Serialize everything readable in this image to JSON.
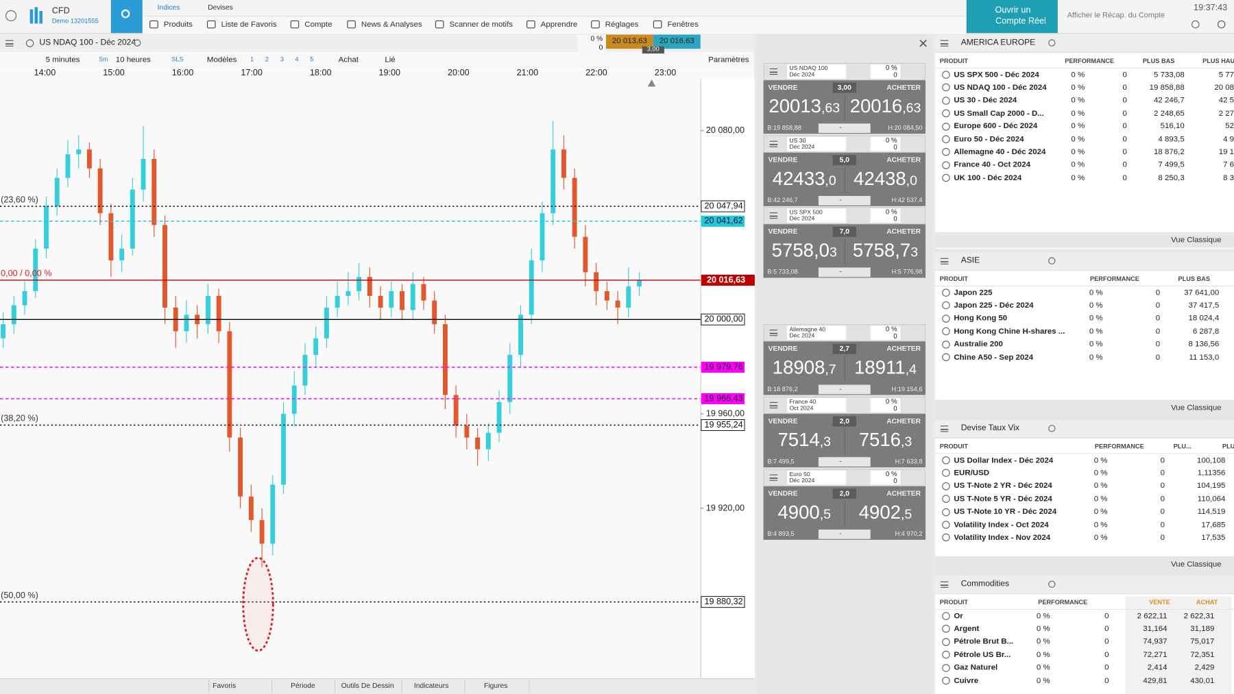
{
  "top_bar": {
    "brand": "CFD",
    "account": "Demo 13201555",
    "tabs": [
      "Indices",
      "Devises"
    ],
    "menu": [
      "Produits",
      "Liste de Favoris",
      "Compte",
      "News & Analyses",
      "Scanner de motifs",
      "Apprendre",
      "Réglages",
      "Fenêtres"
    ],
    "cta": [
      "Ouvrir un",
      "Compte Réel"
    ],
    "recap": "Afficher le Récap. du Compte",
    "clock": "19:37:43"
  },
  "chart_window": {
    "instrument": "US NDAQ 100 - Déc 2024",
    "change": "0 %",
    "change_points": "0",
    "sell": "20 013,63",
    "buy": "20 016,63",
    "spread": "3,00",
    "toolbar": [
      "5 minutes",
      "5m",
      "10 heures",
      "SLS",
      "Modèles",
      "1",
      "2",
      "3",
      "4",
      "5",
      "Achat",
      "Lié",
      "Paramètres"
    ],
    "bottom_tabs": [
      "Favoris",
      "Période",
      "Outils De Dessin",
      "Indicateurs",
      "Figures"
    ]
  },
  "chart_data": {
    "type": "candlestick",
    "up_color": "#35cfdc",
    "down_color": "#e2572b",
    "ylim": [
      19848,
      20106
    ],
    "yticks": [
      {
        "value": 20080,
        "label": "20 080,00"
      },
      {
        "value": 19960,
        "label": "19 960,00"
      },
      {
        "value": 19920,
        "label": "19 920,00"
      }
    ],
    "x_labels": [
      "14:00",
      "15:00",
      "16:00",
      "17:00",
      "18:00",
      "19:00",
      "20:00",
      "21:00",
      "22:00",
      "23:00"
    ],
    "candles": [
      [
        19992,
        20003,
        19988,
        19998
      ],
      [
        19998,
        20010,
        19994,
        20006
      ],
      [
        20006,
        20016,
        20002,
        20012
      ],
      [
        20012,
        20034,
        20009,
        20030
      ],
      [
        20030,
        20052,
        20026,
        20048
      ],
      [
        20048,
        20064,
        20044,
        20060
      ],
      [
        20060,
        20076,
        20056,
        20070
      ],
      [
        20070,
        20078,
        20064,
        20072
      ],
      [
        20072,
        20075,
        20060,
        20064
      ],
      [
        20064,
        20068,
        20040,
        20045
      ],
      [
        20045,
        20049,
        20018,
        20025
      ],
      [
        20025,
        20036,
        20020,
        20030
      ],
      [
        20030,
        20060,
        20027,
        20055
      ],
      [
        20055,
        20082,
        20050,
        20068
      ],
      [
        20068,
        20072,
        20035,
        20040
      ],
      [
        20040,
        20044,
        19998,
        20005
      ],
      [
        20005,
        20010,
        19988,
        19995
      ],
      [
        19995,
        20008,
        19990,
        20002
      ],
      [
        20002,
        20006,
        19992,
        19998
      ],
      [
        19998,
        20015,
        19994,
        20010
      ],
      [
        20010,
        20013,
        19990,
        19995
      ],
      [
        19995,
        19999,
        19944,
        19950
      ],
      [
        19950,
        19954,
        19920,
        19925
      ],
      [
        19925,
        19930,
        19910,
        19915
      ],
      [
        19915,
        19920,
        19895,
        19905
      ],
      [
        19905,
        19934,
        19900,
        19930
      ],
      [
        19930,
        19965,
        19926,
        19960
      ],
      [
        19960,
        19978,
        19955,
        19972
      ],
      [
        19972,
        19990,
        19968,
        19985
      ],
      [
        19985,
        19997,
        19980,
        19992
      ],
      [
        19992,
        20010,
        19988,
        20005
      ],
      [
        20005,
        20016,
        20001,
        20010
      ],
      [
        20010,
        20020,
        20006,
        20012
      ],
      [
        20012,
        20024,
        20008,
        20018
      ],
      [
        20018,
        20022,
        20005,
        20010
      ],
      [
        20010,
        20014,
        20000,
        20005
      ],
      [
        20005,
        20016,
        20001,
        20012
      ],
      [
        20012,
        20015,
        20000,
        20004
      ],
      [
        20004,
        20020,
        20000,
        20015
      ],
      [
        20015,
        20018,
        20004,
        20008
      ],
      [
        20008,
        20012,
        19994,
        19998
      ],
      [
        19998,
        20002,
        19962,
        19968
      ],
      [
        19968,
        19972,
        19950,
        19955
      ],
      [
        19955,
        19960,
        19945,
        19950
      ],
      [
        19950,
        19954,
        19938,
        19945
      ],
      [
        19945,
        19956,
        19940,
        19952
      ],
      [
        19952,
        19970,
        19948,
        19965
      ],
      [
        19965,
        19990,
        19960,
        19985
      ],
      [
        19985,
        20006,
        19980,
        20002
      ],
      [
        20002,
        20030,
        19998,
        20025
      ],
      [
        20025,
        20050,
        20020,
        20045
      ],
      [
        20045,
        20084,
        20040,
        20072
      ],
      [
        20072,
        20078,
        20055,
        20060
      ],
      [
        20060,
        20064,
        20030,
        20035
      ],
      [
        20035,
        20040,
        20014,
        20020
      ],
      [
        20020,
        20024,
        20006,
        20012
      ],
      [
        20012,
        20016,
        20004,
        20008
      ],
      [
        20008,
        20012,
        19998,
        20005
      ],
      [
        20005,
        20022,
        20001,
        20014
      ],
      [
        20014,
        20020,
        20010,
        20016.63
      ]
    ],
    "levels": [
      {
        "value": 20047.94,
        "label": "20 047,94",
        "note": "(23,60 %)",
        "color": "#000000",
        "dash": "2,3"
      },
      {
        "value": 20041.62,
        "label": "20 041,62",
        "color": "#1fc7e0",
        "dash": "4,3"
      },
      {
        "value": 20016.63,
        "label": "20 016,63",
        "note": "0,00 / 0,00 %",
        "color": "#c00000",
        "dash": "none"
      },
      {
        "value": 20000,
        "label": "20 000,00",
        "color": "#000000",
        "dash": "none"
      },
      {
        "value": 19979.76,
        "label": "19 979,76",
        "color": "#ff00ff",
        "dash": "4,3"
      },
      {
        "value": 19966.43,
        "label": "19 966,43",
        "color": "#ff00ff",
        "dash": "4,3"
      },
      {
        "value": 19955.24,
        "label": "19 955,24",
        "note": "(38,20 %)",
        "color": "#000000",
        "dash": "2,3"
      },
      {
        "value": 19880.32,
        "label": "19 880,32",
        "note": "(50,00 %)",
        "color": "#000000",
        "dash": "2,3"
      }
    ]
  },
  "tiles": [
    {
      "name": [
        "US NDAQ 100",
        "Déc 2024"
      ],
      "change": "0 %",
      "change_points": "0",
      "sell_label": "VENDRE",
      "buy_label": "ACHETER",
      "spread": "3,00",
      "sell": [
        "20013",
        ",63"
      ],
      "buy": [
        "20016",
        ",63"
      ],
      "low": "B:19 858,88",
      "high": "H:20 084,50",
      "select": "-"
    },
    {
      "name": [
        "US 30",
        "Déc 2024"
      ],
      "change": "0 %",
      "change_points": "0",
      "sell_label": "VENDRE",
      "buy_label": "ACHETER",
      "spread": "5,0",
      "sell": [
        "42433",
        ",0"
      ],
      "buy": [
        "42438",
        ",0"
      ],
      "low": "B:42 246,7",
      "high": "H:42 537,4",
      "select": "-"
    },
    {
      "name": [
        "US SPX 500",
        "Déc 2024"
      ],
      "change": "0 %",
      "change_points": "0",
      "sell_label": "VENDRE",
      "buy_label": "ACHETER",
      "spread": "7,0",
      "sell": [
        "5758,0",
        "3"
      ],
      "buy": [
        "5758,7",
        "3"
      ],
      "low": "B:5 733,08",
      "high": "H:5 776,98",
      "select": "-"
    },
    {
      "name": [
        "Allemagne 40",
        "Déc 2024"
      ],
      "change": "0 %",
      "change_points": "0",
      "sell_label": "VENDRE",
      "buy_label": "ACHETER",
      "spread": "2,7",
      "sell": [
        "18908",
        ",7"
      ],
      "buy": [
        "18911",
        ",4"
      ],
      "low": "B:18 876,2",
      "high": "H:19 154,6",
      "select": "-"
    },
    {
      "name": [
        "France 40",
        "Oct 2024"
      ],
      "change": "0 %",
      "change_points": "0",
      "sell_label": "VENDRE",
      "buy_label": "ACHETER",
      "spread": "2,0",
      "sell": [
        "7514",
        ",3"
      ],
      "buy": [
        "7516",
        ",3"
      ],
      "low": "B:7 499,5",
      "high": "H:7 633,8",
      "select": "-"
    },
    {
      "name": [
        "Euro 50",
        "Déc 2024"
      ],
      "change": "0 %",
      "change_points": "0",
      "sell_label": "VENDRE",
      "buy_label": "ACHETER",
      "spread": "2,0",
      "sell": [
        "4900",
        ",5"
      ],
      "buy": [
        "4902",
        ",5"
      ],
      "low": "B:4 893,5",
      "high": "H:4 970,2",
      "select": "-"
    }
  ],
  "panels": [
    {
      "title": "AMERICA EUROPE",
      "columns": [
        "PRODUIT",
        "PERFORMANCE",
        "PLUS BAS",
        "PLUS HAU"
      ],
      "rows": [
        [
          "US SPX 500 - Déc 2024",
          "0 %",
          "0",
          "5 733,08",
          "5 77"
        ],
        [
          "US NDAQ 100 - Déc 2024",
          "0 %",
          "0",
          "19 858,88",
          "20 08"
        ],
        [
          "US 30 - Déc 2024",
          "0 %",
          "0",
          "42 246,7",
          "42 5"
        ],
        [
          "US Small Cap 2000 - D...",
          "0 %",
          "0",
          "2 248,65",
          "2 27"
        ],
        [
          "Europe 600 - Déc 2024",
          "0 %",
          "0",
          "516,10",
          "52"
        ],
        [
          "Euro 50 - Déc 2024",
          "0 %",
          "0",
          "4 893,5",
          "4 9"
        ],
        [
          "Allemagne 40 - Déc 2024",
          "0 %",
          "0",
          "18 876,2",
          "19 1"
        ],
        [
          "France 40 - Oct 2024",
          "0 %",
          "0",
          "7 499,5",
          "7 6"
        ],
        [
          "UK 100 - Déc 2024",
          "0 %",
          "0",
          "8 250,3",
          "8 3"
        ]
      ],
      "footer": "Vue Classique"
    },
    {
      "title": "ASIE",
      "columns": [
        "PRODUIT",
        "PERFORMANCE",
        "PLUS BAS"
      ],
      "rows": [
        [
          "Japon 225",
          "0 %",
          "0",
          "37 641,00"
        ],
        [
          "Japon 225 - Déc 2024",
          "0 %",
          "0",
          "37 417,5"
        ],
        [
          "Hong Kong 50",
          "0 %",
          "0",
          "18 024,4"
        ],
        [
          "Hong Kong Chine H-shares ...",
          "0 %",
          "0",
          "6 287,8"
        ],
        [
          "Australie 200",
          "0 %",
          "0",
          "8 136,56"
        ],
        [
          "Chine A50 - Sep 2024",
          "0 %",
          "0",
          "11 153,0"
        ]
      ],
      "footer": "Vue Classique"
    },
    {
      "title": "Devise Taux Vix",
      "columns": [
        "PRODUIT",
        "PERFORMANCE",
        "PLU...",
        "PLU"
      ],
      "rows": [
        [
          "US Dollar Index - Déc 2024",
          "0 %",
          "0",
          "100,108"
        ],
        [
          "EUR/USD",
          "0 %",
          "0",
          "1,11356"
        ],
        [
          "US T-Note 2 YR - Déc 2024",
          "0 %",
          "0",
          "104,195"
        ],
        [
          "US T-Note 5 YR - Déc 2024",
          "0 %",
          "0",
          "110,064"
        ],
        [
          "US T-Note 10 YR - Déc 2024",
          "0 %",
          "0",
          "114,519"
        ],
        [
          "Volatility Index - Oct 2024",
          "0 %",
          "0",
          "17,685"
        ],
        [
          "Volatility Index - Nov 2024",
          "0 %",
          "0",
          "17,535"
        ]
      ],
      "footer": "Vue Classique"
    },
    {
      "title": "Commodities",
      "columns": [
        "PRODUIT",
        "PERFORMANCE",
        "VENTE",
        "ACHAT"
      ],
      "rows": [
        [
          "Or",
          "0 %",
          "0",
          "2 622,11",
          "2 622,31"
        ],
        [
          "Argent",
          "0 %",
          "0",
          "31,164",
          "31,189"
        ],
        [
          "Pétrole Brut B...",
          "0 %",
          "0",
          "74,937",
          "75,017"
        ],
        [
          "Pétrole US Br...",
          "0 %",
          "0",
          "72,271",
          "72,351"
        ],
        [
          "Gaz Naturel",
          "0 %",
          "0",
          "2,414",
          "2,429"
        ],
        [
          "Cuivre",
          "0 %",
          "0",
          "429,81",
          "430,01"
        ]
      ]
    }
  ]
}
